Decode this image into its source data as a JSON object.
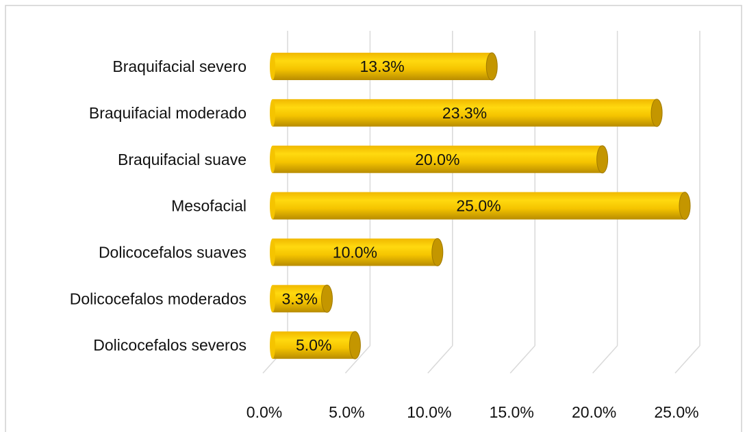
{
  "chart_data": {
    "type": "bar",
    "orientation": "horizontal",
    "style": "cylinder",
    "categories": [
      "Braquifacial severo",
      "Braquifacial moderado",
      "Braquifacial suave",
      "Mesofacial",
      "Dolicocefalos suaves",
      "Dolicocefalos moderados",
      "Dolicocefalos severos"
    ],
    "values": [
      13.3,
      23.3,
      20.0,
      25.0,
      10.0,
      3.3,
      5.0
    ],
    "value_labels": [
      "13.3%",
      "23.3%",
      "20.0%",
      "25.0%",
      "10.0%",
      "3.3%",
      "5.0%"
    ],
    "color": "#f5c400",
    "xlim": [
      0,
      25
    ],
    "xticks": [
      {
        "value": 0,
        "label": "0.0%"
      },
      {
        "value": 5,
        "label": "5.0%"
      },
      {
        "value": 10,
        "label": "10.0%"
      },
      {
        "value": 15,
        "label": "15.0%"
      },
      {
        "value": 20,
        "label": "20.0%"
      },
      {
        "value": 25,
        "label": "25.0%"
      }
    ],
    "grid": true
  }
}
